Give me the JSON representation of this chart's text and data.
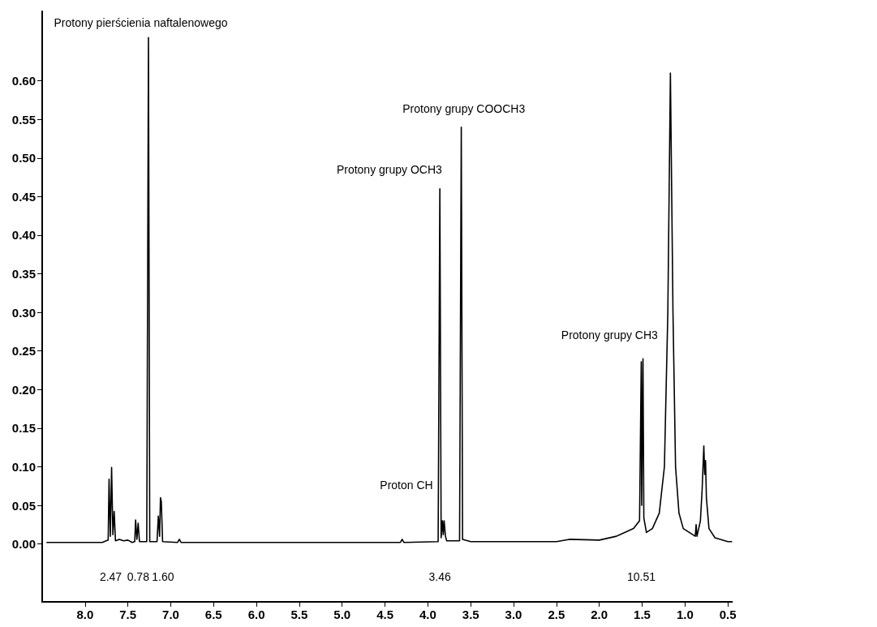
{
  "chart_data": {
    "type": "line",
    "color": "#000000",
    "marker": "none",
    "line_style": "solid",
    "x": [
      8.45,
      7.8,
      7.73,
      7.72,
      7.705,
      7.69,
      7.675,
      7.66,
      7.645,
      7.6,
      7.55,
      7.5,
      7.45,
      7.42,
      7.41,
      7.395,
      7.38,
      7.365,
      7.28,
      7.26,
      7.245,
      7.16,
      7.145,
      7.13,
      7.12,
      7.11,
      7.095,
      6.92,
      6.9,
      6.88,
      4.32,
      4.3,
      4.28,
      3.88,
      3.86,
      3.845,
      3.83,
      3.82,
      3.81,
      3.795,
      3.78,
      3.63,
      3.61,
      3.595,
      3.5,
      2.5,
      2.35,
      2.0,
      1.8,
      1.6,
      1.53,
      1.51,
      1.505,
      1.49,
      1.48,
      1.45,
      1.38,
      1.3,
      1.24,
      1.2,
      1.17,
      1.14,
      1.11,
      1.07,
      1.02,
      0.95,
      0.88,
      0.87,
      0.86,
      0.82,
      0.8,
      0.78,
      0.77,
      0.76,
      0.75,
      0.72,
      0.65,
      0.5,
      0.45
    ],
    "values": [
      0.002,
      0.002,
      0.005,
      0.084,
      0.01,
      0.099,
      0.012,
      0.042,
      0.004,
      0.006,
      0.004,
      0.005,
      0.002,
      0.003,
      0.031,
      0.006,
      0.027,
      0.003,
      0.003,
      0.656,
      0.003,
      0.003,
      0.036,
      0.01,
      0.06,
      0.055,
      0.003,
      0.002,
      0.006,
      0.002,
      0.002,
      0.006,
      0.002,
      0.003,
      0.46,
      0.008,
      0.03,
      0.012,
      0.03,
      0.01,
      0.004,
      0.004,
      0.54,
      0.006,
      0.003,
      0.003,
      0.006,
      0.005,
      0.01,
      0.02,
      0.03,
      0.236,
      0.05,
      0.24,
      0.034,
      0.015,
      0.02,
      0.04,
      0.1,
      0.3,
      0.61,
      0.3,
      0.1,
      0.04,
      0.02,
      0.015,
      0.01,
      0.025,
      0.01,
      0.03,
      0.07,
      0.127,
      0.09,
      0.108,
      0.06,
      0.02,
      0.008,
      0.003,
      0.003
    ],
    "xlim": [
      8.5,
      0.45
    ],
    "xticks": [
      {
        "value": 8,
        "label": "8.0"
      },
      7.5,
      {
        "value": 7,
        "label": "7.0"
      },
      6.5,
      {
        "value": 6,
        "label": "6.0"
      },
      5.5,
      {
        "value": 5,
        "label": "5.0"
      },
      4.5,
      {
        "value": 4,
        "label": "4.0"
      },
      3.5,
      {
        "value": 3,
        "label": "3.0"
      },
      2.5,
      {
        "value": 2,
        "label": "2.0"
      },
      1.5,
      {
        "value": 1,
        "label": "1.0"
      },
      0.5
    ],
    "ylim": [
      -0.075,
      0.69
    ],
    "yticks": [
      {
        "value": 0,
        "label": "0.00"
      },
      0.05,
      {
        "value": 0.1,
        "label": "0.10"
      },
      0.15,
      {
        "value": 0.2,
        "label": "0.20"
      },
      0.25,
      {
        "value": 0.3,
        "label": "0.30"
      },
      0.35,
      {
        "value": 0.4,
        "label": "0.40"
      },
      0.45,
      {
        "value": 0.5,
        "label": "0.50"
      },
      0.55,
      {
        "value": 0.6,
        "label": "0.60"
      }
    ],
    "annotations": [
      "Protony pierścienia naftalenowego",
      "Protony grupy COOCH3",
      "Protony grupy OCH3",
      "Proton CH",
      "Protony grupy CH3",
      "2.47",
      "0.78",
      "1.60",
      "3.46",
      "10.51"
    ]
  }
}
